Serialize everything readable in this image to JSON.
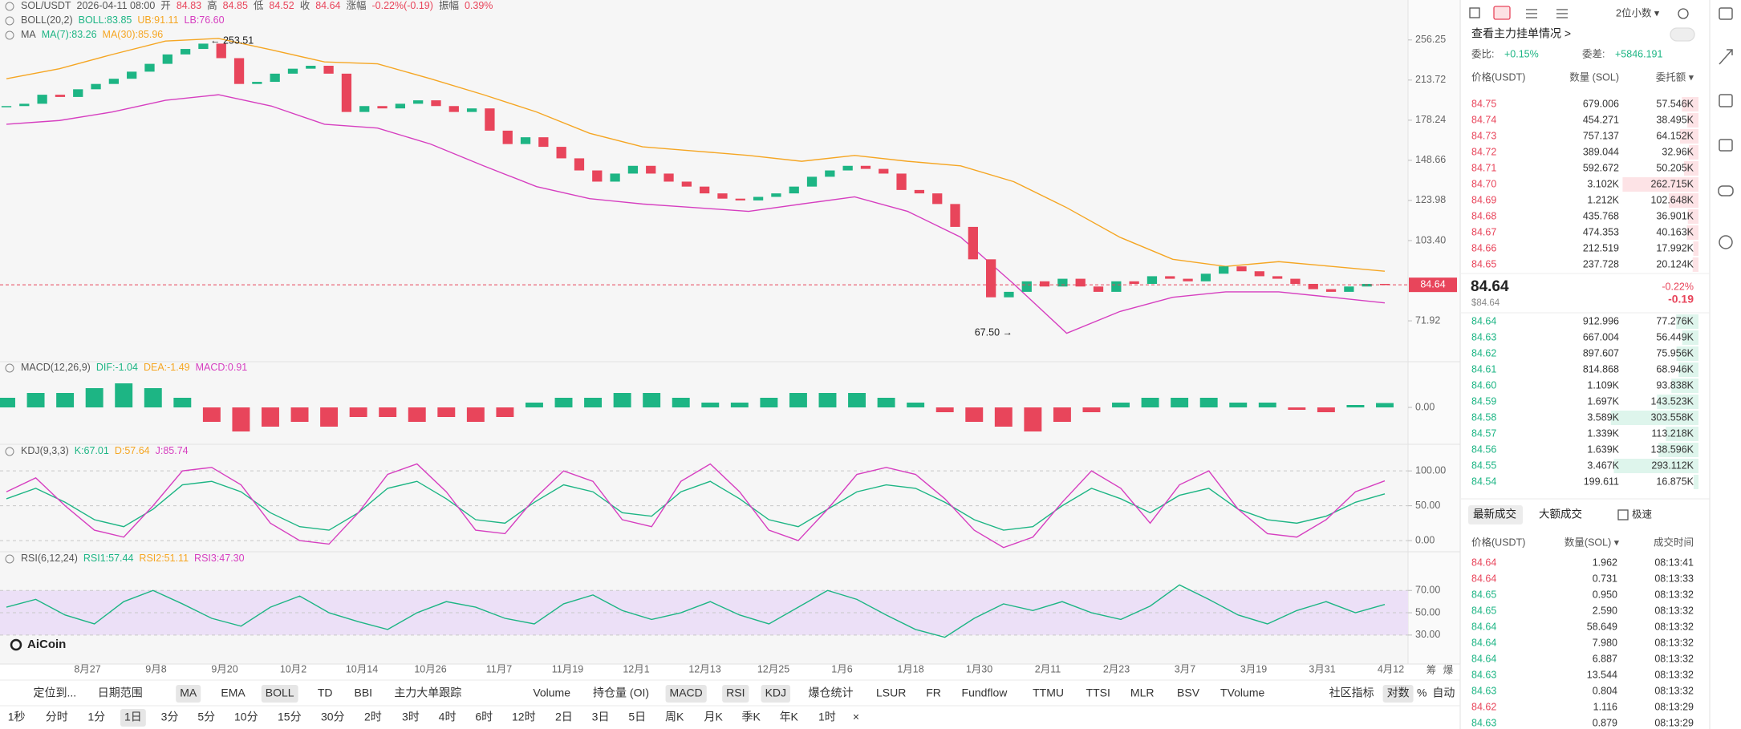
{
  "chart_data": [
    {
      "type": "candlestick",
      "legend_rows": [
        [
          {
            "text": "SOL/USDT",
            "color": "#555"
          },
          {
            "text": "2026-04-11 08:00",
            "color": "#555"
          },
          {
            "text": "开",
            "color": "#555"
          },
          {
            "text": "84.83",
            "color": "#e8455b"
          },
          {
            "text": "高",
            "color": "#555"
          },
          {
            "text": "84.85",
            "color": "#e8455b"
          },
          {
            "text": "低",
            "color": "#555"
          },
          {
            "text": "84.52",
            "color": "#e8455b"
          },
          {
            "text": "收",
            "color": "#555"
          },
          {
            "text": "84.64",
            "color": "#e8455b"
          },
          {
            "text": "涨幅",
            "color": "#555"
          },
          {
            "text": "-0.22%(-0.19)",
            "color": "#e8455b"
          },
          {
            "text": "振幅",
            "color": "#555"
          },
          {
            "text": "0.39%",
            "color": "#e8455b"
          }
        ],
        [
          {
            "text": "BOLL(20,2)",
            "color": "#555"
          },
          {
            "text": "BOLL:83.85",
            "color": "#1db584"
          },
          {
            "text": "UB:91.11",
            "color": "#f5a623"
          },
          {
            "text": "LB:76.60",
            "color": "#d63fc0"
          }
        ],
        [
          {
            "text": "MA",
            "color": "#555"
          },
          {
            "text": "MA(7):83.26",
            "color": "#1db584"
          },
          {
            "text": "MA(30):85.96",
            "color": "#f5a623"
          }
        ]
      ],
      "closes": [
        190,
        192,
        200,
        198,
        205,
        210,
        215,
        222,
        230,
        240,
        246,
        252,
        236,
        210,
        212,
        220,
        225,
        228,
        220,
        185,
        190,
        188,
        192,
        195,
        190,
        185,
        188,
        170,
        160,
        165,
        158,
        150,
        142,
        135,
        140,
        145,
        140,
        135,
        132,
        128,
        125,
        124,
        126,
        128,
        132,
        138,
        142,
        145,
        143,
        140,
        130,
        128,
        122,
        110,
        95,
        80,
        82,
        86,
        84,
        87,
        84,
        82,
        86,
        85,
        88,
        87,
        86,
        89,
        92,
        90,
        88,
        87,
        85,
        83,
        82,
        84,
        85,
        84.64
      ],
      "up_color": "#1db584",
      "down_color": "#e8455b",
      "lines": [
        {
          "color": "#f5a623",
          "values": [
            215,
            225,
            240,
            255,
            258,
            245,
            232,
            230,
            215,
            200,
            185,
            168,
            158,
            155,
            152,
            148,
            152,
            148,
            145,
            135,
            120,
            105,
            95,
            92,
            94,
            92,
            90
          ]
        },
        {
          "color": "#d63fc0",
          "values": [
            175,
            178,
            185,
            195,
            200,
            190,
            175,
            172,
            160,
            145,
            132,
            125,
            122,
            120,
            118,
            122,
            126,
            118,
            105,
            85,
            68,
            75,
            80,
            82,
            82,
            80,
            78
          ]
        }
      ],
      "ylim": [
        60,
        307
      ],
      "log_scale": true,
      "yticks": [
        256.25,
        213.72,
        178.24,
        148.66,
        123.98,
        {
          "value": 103.4,
          "label": "103.40"
        },
        71.92
      ],
      "last_price": 84.64,
      "annotations": [
        "← 253.51",
        "67.50 →"
      ],
      "xlabels": [
        "8月27",
        "9月8",
        "9月20",
        "10月2",
        "10月14",
        "10月26",
        "11月7",
        "11月19",
        "12月1",
        "12月13",
        "12月25",
        "1月6",
        "1月18",
        "1月30",
        "2月11",
        "2月23",
        "3月7",
        "3月19",
        "3月31",
        "4月12"
      ],
      "axis_buttons": [
        "筹",
        "爆"
      ],
      "logo": "AiCoin"
    },
    {
      "type": "bar",
      "legend_rows": [
        [
          {
            "text": "MACD(12,26,9)",
            "color": "#555"
          },
          {
            "text": "DIF:-1.04",
            "color": "#1db584"
          },
          {
            "text": "DEA:-1.49",
            "color": "#f5a623"
          },
          {
            "text": "MACD:0.91",
            "color": "#d63fc0"
          }
        ]
      ],
      "values": [
        2,
        3,
        3,
        4,
        5,
        4,
        2,
        -3,
        -5,
        -4,
        -3,
        -4,
        -2,
        -2,
        -3,
        -2,
        -3,
        -2,
        1,
        2,
        2,
        3,
        3,
        2,
        1,
        1,
        2,
        3,
        3,
        3,
        2,
        1,
        -1,
        -3,
        -4,
        -5,
        -3,
        -1,
        1,
        2,
        2,
        2,
        1,
        1,
        -0.5,
        -1,
        0.5,
        0.91
      ],
      "up_color": "#1db584",
      "down_color": "#e8455b",
      "ylim": [
        -7.5,
        9.5
      ],
      "yticks": [
        {
          "value": 0,
          "label": "0.00"
        }
      ]
    },
    {
      "type": "line",
      "legend_rows": [
        [
          {
            "text": "KDJ(9,3,3)",
            "color": "#555"
          },
          {
            "text": "K:67.01",
            "color": "#1db584"
          },
          {
            "text": "D:57.64",
            "color": "#f5a623"
          },
          {
            "text": "J:85.74",
            "color": "#d63fc0"
          }
        ]
      ],
      "lines": [
        {
          "color": "#1db584",
          "values": [
            60,
            75,
            55,
            30,
            20,
            45,
            80,
            85,
            70,
            40,
            20,
            15,
            40,
            75,
            85,
            60,
            30,
            25,
            55,
            80,
            70,
            40,
            35,
            70,
            85,
            60,
            30,
            20,
            45,
            70,
            80,
            75,
            55,
            30,
            15,
            20,
            50,
            75,
            60,
            40,
            65,
            75,
            45,
            30,
            25,
            35,
            55,
            67.01
          ]
        },
        {
          "color": "#d63fc0",
          "values": [
            70,
            90,
            50,
            15,
            5,
            50,
            100,
            105,
            80,
            25,
            0,
            -5,
            40,
            95,
            110,
            70,
            15,
            10,
            60,
            100,
            85,
            30,
            20,
            85,
            110,
            70,
            15,
            0,
            45,
            95,
            105,
            95,
            60,
            15,
            -10,
            5,
            55,
            100,
            75,
            25,
            80,
            100,
            45,
            10,
            5,
            30,
            70,
            85.74
          ]
        }
      ],
      "ylim": [
        -16,
        137
      ],
      "grid": true,
      "yticks": [
        {
          "value": 100,
          "label": "100.00"
        },
        {
          "value": 50,
          "label": "50.00"
        },
        {
          "value": 0,
          "label": "0.00"
        }
      ]
    },
    {
      "type": "line",
      "legend_rows": [
        [
          {
            "text": "RSI(6,12,24)",
            "color": "#555"
          },
          {
            "text": "RSI1:57.44",
            "color": "#1db584"
          },
          {
            "text": "RSI2:51.11",
            "color": "#f5a623"
          },
          {
            "text": "RSI3:47.30",
            "color": "#d63fc0"
          }
        ]
      ],
      "lines": [
        {
          "color": "#1db584",
          "values": [
            55,
            62,
            48,
            40,
            60,
            70,
            58,
            45,
            38,
            55,
            65,
            50,
            42,
            35,
            50,
            60,
            55,
            45,
            40,
            58,
            66,
            52,
            44,
            50,
            60,
            48,
            40,
            55,
            70,
            62,
            48,
            35,
            28,
            45,
            58,
            52,
            60,
            50,
            44,
            56,
            75,
            62,
            48,
            40,
            52,
            60,
            50,
            57.44
          ]
        }
      ],
      "ylim": [
        4,
        104
      ],
      "grid": true,
      "band_color": "#ece0f7",
      "yticks": [
        {
          "value": 70,
          "label": "70.00"
        },
        {
          "value": 50,
          "label": "50.00"
        },
        {
          "value": 30,
          "label": "30.00"
        }
      ]
    }
  ],
  "toolbar": {
    "row1": [
      {
        "text": "定位到...",
        "active": false
      },
      {
        "text": "日期范围",
        "active": false
      },
      {
        "text": "MA",
        "active": true
      },
      {
        "text": "EMA",
        "active": false
      },
      {
        "text": "BOLL",
        "active": true
      },
      {
        "text": "TD",
        "active": false
      },
      {
        "text": "BBI",
        "active": false
      },
      {
        "text": "主力大单跟踪",
        "active": false
      },
      {
        "text": "Volume",
        "active": false
      },
      {
        "text": "持仓量 (OI)",
        "active": false
      },
      {
        "text": "MACD",
        "active": true
      },
      {
        "text": "RSI",
        "active": true
      },
      {
        "text": "KDJ",
        "active": true
      },
      {
        "text": "爆仓统计",
        "active": false
      },
      {
        "text": "LSUR",
        "active": false
      },
      {
        "text": "FR",
        "active": false
      },
      {
        "text": "Fundflow",
        "active": false
      },
      {
        "text": "TTMU",
        "active": false
      },
      {
        "text": "TTSI",
        "active": false
      },
      {
        "text": "MLR",
        "active": false
      },
      {
        "text": "BSV",
        "active": false
      },
      {
        "text": "TVolume",
        "active": false
      },
      {
        "text": "社区指标",
        "active": false
      },
      {
        "text": "对数",
        "active": true
      },
      {
        "text": "%",
        "active": false
      },
      {
        "text": "自动",
        "active": false
      }
    ],
    "row2": [
      {
        "text": "1秒",
        "active": false
      },
      {
        "text": "分时",
        "active": false
      },
      {
        "text": "1分",
        "active": false
      },
      {
        "text": "1日",
        "active": true
      },
      {
        "text": "3分",
        "active": false
      },
      {
        "text": "5分",
        "active": false
      },
      {
        "text": "10分",
        "active": false
      },
      {
        "text": "15分",
        "active": false
      },
      {
        "text": "30分",
        "active": false
      },
      {
        "text": "2时",
        "active": false
      },
      {
        "text": "3时",
        "active": false
      },
      {
        "text": "4时",
        "active": false
      },
      {
        "text": "6时",
        "active": false
      },
      {
        "text": "12时",
        "active": false
      },
      {
        "text": "2日",
        "active": false
      },
      {
        "text": "3日",
        "active": false
      },
      {
        "text": "5日",
        "active": false
      },
      {
        "text": "周K",
        "active": false
      },
      {
        "text": "月K",
        "active": false
      },
      {
        "text": "季K",
        "active": false
      },
      {
        "text": "年K",
        "active": false
      },
      {
        "text": "1时",
        "active": false
      },
      {
        "text": "×",
        "active": false
      }
    ]
  },
  "order_book": {
    "decimals": "2位小数 ▾",
    "link": "查看主力挂单情况 >",
    "ratio_label": "委比:",
    "ratio": "+0.15%",
    "diff_label": "委差:",
    "diff": "+5846.191",
    "header": [
      "价格(USDT)",
      "数量 (SOL)",
      "委托额 ▾"
    ],
    "ask_color": "#e8455b",
    "bid_color": "#1db584",
    "asks": [
      [
        "84.75",
        "679.006",
        "57.546K"
      ],
      [
        "84.74",
        "454.271",
        "38.495K"
      ],
      [
        "84.73",
        "757.137",
        "64.152K"
      ],
      [
        "84.72",
        "389.044",
        "32.96K"
      ],
      [
        "84.71",
        "592.672",
        "50.205K"
      ],
      [
        "84.70",
        "3.102K",
        "262.715K"
      ],
      [
        "84.69",
        "1.212K",
        "102.648K"
      ],
      [
        "84.68",
        "435.768",
        "36.901K"
      ],
      [
        "84.67",
        "474.353",
        "40.163K"
      ],
      [
        "84.66",
        "212.519",
        "17.992K"
      ],
      [
        "84.65",
        "237.728",
        "20.124K"
      ]
    ],
    "last": "84.64",
    "last_usd": "$84.64",
    "change_pct": "-0.22%",
    "change": "-0.19",
    "bids": [
      [
        "84.64",
        "912.996",
        "77.276K"
      ],
      [
        "84.63",
        "667.004",
        "56.449K"
      ],
      [
        "84.62",
        "897.607",
        "75.956K"
      ],
      [
        "84.61",
        "814.868",
        "68.946K"
      ],
      [
        "84.60",
        "1.109K",
        "93.838K"
      ],
      [
        "84.59",
        "1.697K",
        "143.523K"
      ],
      [
        "84.58",
        "3.589K",
        "303.558K"
      ],
      [
        "84.57",
        "1.339K",
        "113.218K"
      ],
      [
        "84.56",
        "1.639K",
        "138.596K"
      ],
      [
        "84.55",
        "3.467K",
        "293.112K"
      ],
      [
        "84.54",
        "199.611",
        "16.875K"
      ]
    ]
  },
  "trades": {
    "tabs": [
      "最新成交",
      "大额成交"
    ],
    "fast": "极速",
    "header": [
      "价格(USDT)",
      "数量(SOL) ▾",
      "成交时间"
    ],
    "rows": [
      {
        "price": "84.64",
        "qty": "1.962",
        "time": "08:13:41",
        "color": "#e8455b"
      },
      {
        "price": "84.64",
        "qty": "0.731",
        "time": "08:13:33",
        "color": "#e8455b"
      },
      {
        "price": "84.65",
        "qty": "0.950",
        "time": "08:13:32",
        "color": "#1db584"
      },
      {
        "price": "84.65",
        "qty": "2.590",
        "time": "08:13:32",
        "color": "#1db584"
      },
      {
        "price": "84.64",
        "qty": "58.649",
        "time": "08:13:32",
        "color": "#1db584"
      },
      {
        "price": "84.64",
        "qty": "7.980",
        "time": "08:13:32",
        "color": "#1db584"
      },
      {
        "price": "84.64",
        "qty": "6.887",
        "time": "08:13:32",
        "color": "#1db584"
      },
      {
        "price": "84.63",
        "qty": "13.544",
        "time": "08:13:32",
        "color": "#1db584"
      },
      {
        "price": "84.63",
        "qty": "0.804",
        "time": "08:13:32",
        "color": "#1db584"
      },
      {
        "price": "84.62",
        "qty": "1.116",
        "time": "08:13:29",
        "color": "#e8455b"
      },
      {
        "price": "84.63",
        "qty": "0.879",
        "time": "08:13:29",
        "color": "#1db584"
      }
    ]
  }
}
